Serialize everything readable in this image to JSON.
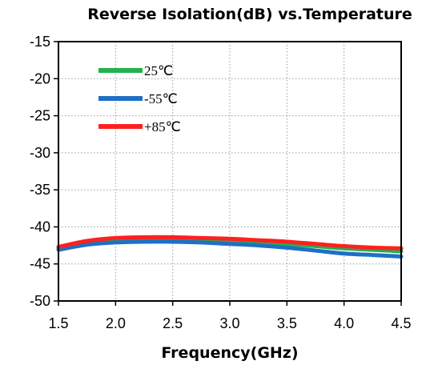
{
  "chart_data": {
    "type": "line",
    "title": "Reverse Isolation(dB) vs.Temperature",
    "xlabel": "Frequency(GHz)",
    "ylabel": "",
    "xlim": [
      1.5,
      4.5
    ],
    "ylim": [
      -50,
      -15
    ],
    "xticks": [
      "1.5",
      "2.0",
      "2.5",
      "3.0",
      "3.5",
      "4.0",
      "4.5"
    ],
    "yticks": [
      "-15",
      "-20",
      "-25",
      "-30",
      "-35",
      "-40",
      "-45",
      "-50"
    ],
    "grid": true,
    "legend_position": "top-left",
    "x": [
      1.5,
      1.75,
      2.0,
      2.25,
      2.5,
      2.75,
      3.0,
      3.25,
      3.5,
      3.75,
      4.0,
      4.25,
      4.5
    ],
    "series": [
      {
        "name": "25℃",
        "color": "#22b14c",
        "values": [
          -42.9,
          -42.2,
          -41.8,
          -41.7,
          -41.7,
          -41.8,
          -41.9,
          -42.1,
          -42.3,
          -42.6,
          -42.9,
          -43.1,
          -43.3
        ]
      },
      {
        "name": "-55℃",
        "color": "#1f6fc5",
        "values": [
          -43.1,
          -42.4,
          -42.1,
          -42.0,
          -42.0,
          -42.1,
          -42.3,
          -42.5,
          -42.8,
          -43.2,
          -43.6,
          -43.8,
          -44.0
        ]
      },
      {
        "name": "+85℃",
        "color": "#ff2020",
        "values": [
          -42.7,
          -41.9,
          -41.5,
          -41.4,
          -41.4,
          -41.5,
          -41.6,
          -41.8,
          -42.0,
          -42.3,
          -42.6,
          -42.8,
          -42.9
        ]
      }
    ]
  }
}
